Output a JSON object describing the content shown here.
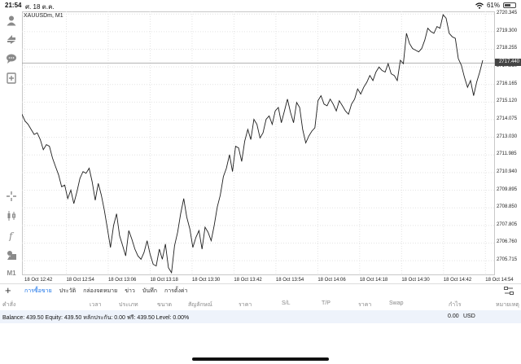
{
  "status": {
    "time": "21:54",
    "date": "ศ. 18 ต.ค.",
    "battery_pct": 61,
    "battery_label": "61%"
  },
  "chart": {
    "symbol": "XAUUSDm, M1",
    "current_price": "2717.440"
  },
  "toolbar_icons": [
    "account-icon",
    "trade-icon",
    "chat-icon",
    "new-order-icon",
    "crosshair-icon",
    "candles-icon",
    "indicator-icon",
    "objects-icon",
    "timeframe-icon"
  ],
  "timeframe_label": "M1",
  "chart_data": {
    "type": "line",
    "title": "XAUUSDm, M1",
    "x_labels": [
      "18 Oct 12:42",
      "18 Oct 12:54",
      "18 Oct 13:06",
      "18 Oct 13:18",
      "18 Oct 13:30",
      "18 Oct 13:42",
      "18 Oct 13:54",
      "18 Oct 14:06",
      "18 Oct 14:18",
      "18 Oct 14:30",
      "18 Oct 14:42",
      "18 Oct 14:54"
    ],
    "y_ticks": [
      "2720.345",
      "2719.300",
      "2718.255",
      "2717.210",
      "2716.165",
      "2715.120",
      "2714.075",
      "2713.030",
      "2711.985",
      "2710.940",
      "2709.895",
      "2708.850",
      "2707.805",
      "2706.760",
      "2705.715"
    ],
    "ylim": [
      2704.9,
      2720.5
    ],
    "values": [
      2714.4,
      2714.0,
      2713.8,
      2713.5,
      2713.2,
      2713.3,
      2712.9,
      2712.3,
      2712.6,
      2712.5,
      2711.8,
      2711.3,
      2710.8,
      2710.1,
      2710.2,
      2709.4,
      2709.9,
      2709.1,
      2709.8,
      2710.6,
      2711.0,
      2710.9,
      2711.2,
      2710.4,
      2709.3,
      2710.3,
      2709.6,
      2708.7,
      2707.6,
      2706.5,
      2707.8,
      2708.5,
      2707.2,
      2706.6,
      2706.0,
      2707.5,
      2707.0,
      2706.4,
      2706.0,
      2705.8,
      2706.2,
      2706.9,
      2706.1,
      2705.5,
      2705.4,
      2706.4,
      2705.8,
      2706.7,
      2705.3,
      2705.0,
      2706.6,
      2707.4,
      2708.5,
      2709.4,
      2708.3,
      2707.6,
      2706.5,
      2707.1,
      2707.5,
      2706.4,
      2707.7,
      2707.4,
      2706.9,
      2707.8,
      2708.9,
      2709.6,
      2710.7,
      2711.2,
      2712.0,
      2711.0,
      2712.5,
      2712.4,
      2711.6,
      2712.8,
      2713.5,
      2712.9,
      2714.1,
      2713.8,
      2713.0,
      2713.3,
      2714.1,
      2714.3,
      2713.8,
      2714.6,
      2714.8,
      2713.9,
      2714.6,
      2715.3,
      2714.5,
      2713.9,
      2715.1,
      2714.8,
      2713.5,
      2712.7,
      2713.1,
      2713.4,
      2713.6,
      2715.2,
      2715.5,
      2715.0,
      2714.9,
      2715.3,
      2715.0,
      2714.6,
      2715.2,
      2714.9,
      2714.6,
      2714.4,
      2715.0,
      2715.3,
      2715.9,
      2715.6,
      2716.0,
      2716.3,
      2716.7,
      2716.4,
      2716.9,
      2717.2,
      2717.0,
      2716.9,
      2717.4,
      2716.8,
      2716.7,
      2716.4,
      2717.6,
      2717.4,
      2719.2,
      2718.6,
      2718.3,
      2718.2,
      2718.1,
      2718.3,
      2718.8,
      2719.5,
      2719.3,
      2719.2,
      2719.6,
      2719.5,
      2720.3,
      2720.1,
      2719.2,
      2719.0,
      2718.9,
      2717.7,
      2717.3,
      2716.6,
      2716.0,
      2716.4,
      2715.5,
      2716.3,
      2716.9,
      2717.6
    ],
    "grid": true,
    "current_price_line": 2717.44
  },
  "bottom": {
    "tabs": [
      "การซื้อขาย",
      "ประวัติ",
      "กล่องจดหมาย",
      "ข่าว",
      "บันทึก",
      "การตั้งค่า"
    ],
    "active_tab": 0,
    "columns": [
      "คำสั่ง",
      "เวลา",
      "ประเภท",
      "ขนาด",
      "สัญลักษณ์",
      "ราคา",
      "S/L",
      "T/P",
      "ราคา",
      "Swap",
      "กำไร",
      "หมายเหตุ"
    ],
    "balance_text": "Balance: 439.50 Equity: 439.50 หลักประกัน: 0.00 ฟรี: 439.50 Level: 0.00%",
    "profit": "0.00",
    "currency": "USD"
  }
}
